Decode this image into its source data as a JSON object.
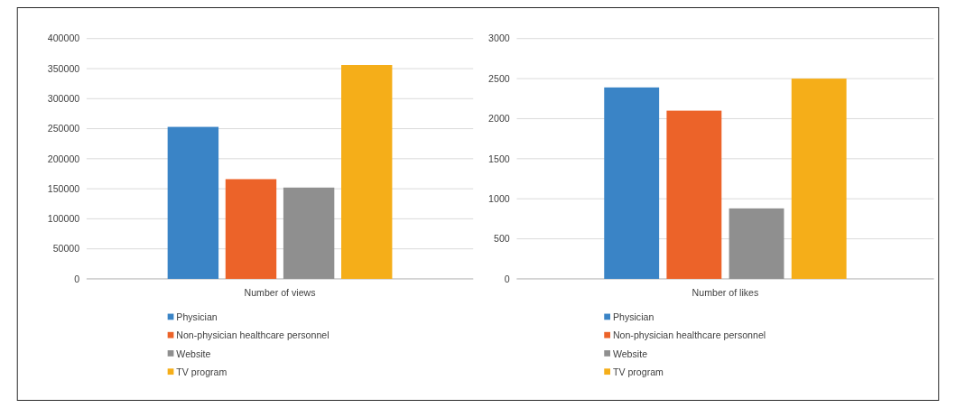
{
  "chart_data": [
    {
      "type": "bar",
      "categories": [
        "Number of views"
      ],
      "series": [
        {
          "name": "Physician",
          "color": "#3a84c6",
          "values": [
            253000
          ]
        },
        {
          "name": "Non-physician healthcare personnel",
          "color": "#ec6329",
          "values": [
            166000
          ]
        },
        {
          "name": "Website",
          "color": "#8f8f8f",
          "values": [
            152000
          ]
        },
        {
          "name": "TV program",
          "color": "#f5ae19",
          "values": [
            356000
          ]
        }
      ],
      "ylim": [
        0,
        400000
      ],
      "yticks": [
        0,
        50000,
        100000,
        150000,
        200000,
        250000,
        300000,
        350000,
        400000
      ],
      "grid": "y",
      "legend": "bottom"
    },
    {
      "type": "bar",
      "categories": [
        "Number of likes"
      ],
      "series": [
        {
          "name": "Physician",
          "color": "#3a84c6",
          "values": [
            2390
          ]
        },
        {
          "name": "Non-physician healthcare personnel",
          "color": "#ec6329",
          "values": [
            2100
          ]
        },
        {
          "name": "Website",
          "color": "#8f8f8f",
          "values": [
            880
          ]
        },
        {
          "name": "TV program",
          "color": "#f5ae19",
          "values": [
            2500
          ]
        }
      ],
      "ylim": [
        0,
        3000
      ],
      "yticks": [
        0,
        500,
        1000,
        1500,
        2000,
        2500,
        3000
      ],
      "grid": "y",
      "legend": "bottom"
    }
  ]
}
